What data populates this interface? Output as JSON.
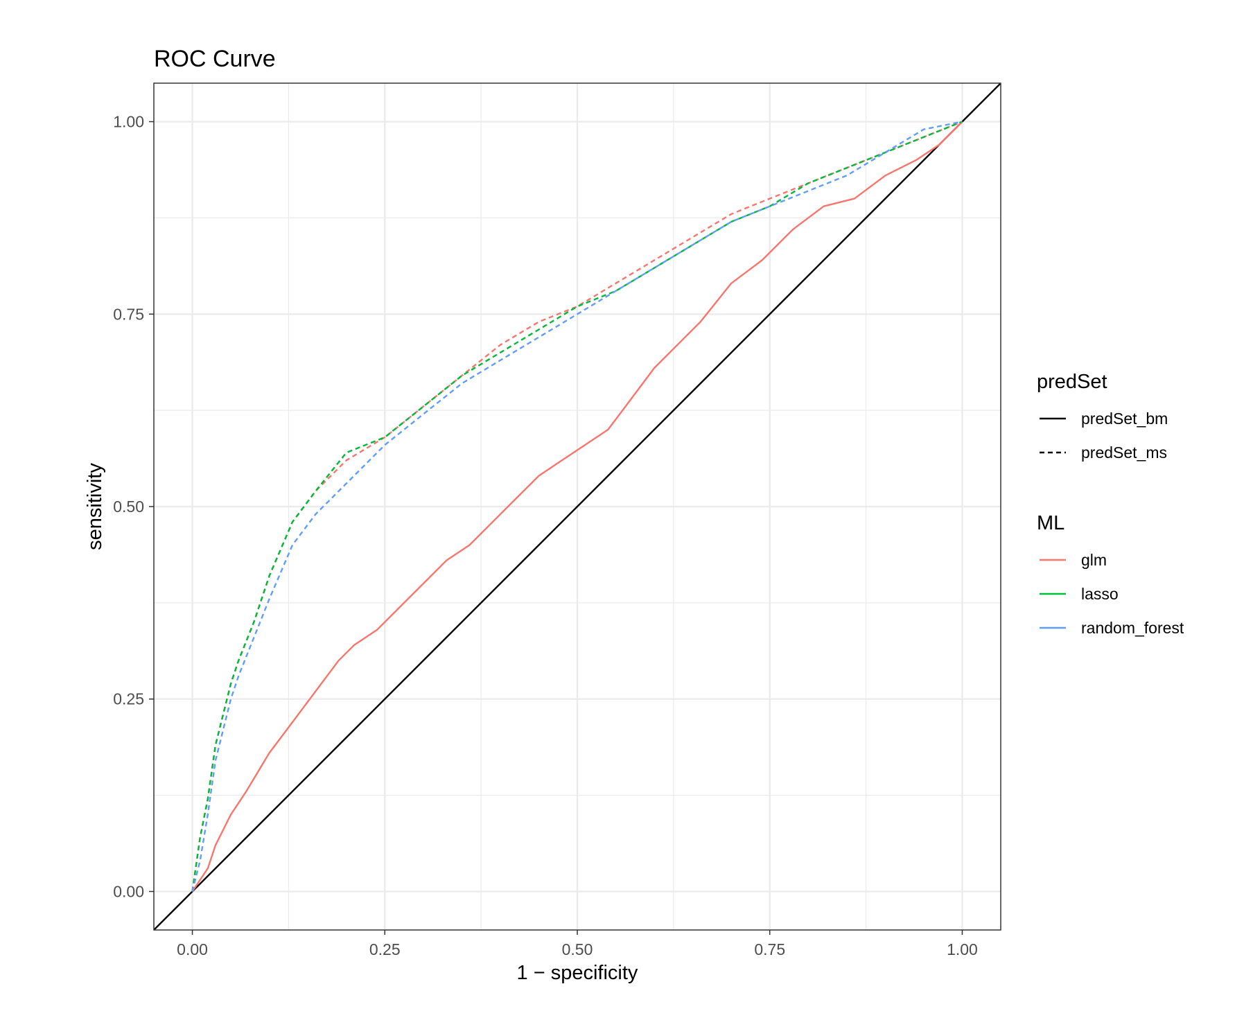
{
  "chart_data": {
    "type": "line",
    "title": "ROC Curve",
    "xlabel": "1 − specificity",
    "ylabel": "sensitivity",
    "xlim": [
      -0.05,
      1.05
    ],
    "ylim": [
      -0.05,
      1.05
    ],
    "x_ticks": [
      "0.00",
      "0.25",
      "0.50",
      "0.75",
      "1.00"
    ],
    "y_ticks": [
      "0.00",
      "0.25",
      "0.50",
      "0.75",
      "1.00"
    ],
    "grid": true,
    "legend_position": "right",
    "legends": [
      {
        "title": "predSet",
        "kind": "linetype",
        "entries": [
          {
            "label": "predSet_bm",
            "dash": "solid"
          },
          {
            "label": "predSet_ms",
            "dash": "dashed"
          }
        ]
      },
      {
        "title": "ML",
        "kind": "color",
        "entries": [
          {
            "label": "glm",
            "color": "#F8766D"
          },
          {
            "label": "lasso",
            "color": "#00BA38"
          },
          {
            "label": "random_forest",
            "color": "#619CFF"
          }
        ]
      }
    ],
    "reference_line": {
      "color": "#000000",
      "points": [
        [
          -0.05,
          -0.05
        ],
        [
          1.05,
          1.05
        ]
      ]
    },
    "series": [
      {
        "name": "glm",
        "color": "#F8766D",
        "dash": "solid",
        "x": [
          0.0,
          0.02,
          0.03,
          0.05,
          0.07,
          0.1,
          0.13,
          0.16,
          0.19,
          0.21,
          0.24,
          0.27,
          0.3,
          0.33,
          0.36,
          0.39,
          0.42,
          0.45,
          0.48,
          0.51,
          0.54,
          0.57,
          0.6,
          0.63,
          0.66,
          0.7,
          0.74,
          0.78,
          0.82,
          0.86,
          0.9,
          0.94,
          0.97,
          1.0
        ],
        "y": [
          0.0,
          0.03,
          0.06,
          0.1,
          0.13,
          0.18,
          0.22,
          0.26,
          0.3,
          0.32,
          0.34,
          0.37,
          0.4,
          0.43,
          0.45,
          0.48,
          0.51,
          0.54,
          0.56,
          0.58,
          0.6,
          0.64,
          0.68,
          0.71,
          0.74,
          0.79,
          0.82,
          0.86,
          0.89,
          0.9,
          0.93,
          0.95,
          0.97,
          1.0
        ]
      },
      {
        "name": "glm",
        "color": "#F8766D",
        "dash": "dashed",
        "x": [
          0.0,
          0.01,
          0.02,
          0.03,
          0.04,
          0.05,
          0.06,
          0.08,
          0.1,
          0.13,
          0.16,
          0.2,
          0.25,
          0.3,
          0.35,
          0.4,
          0.45,
          0.5,
          0.55,
          0.6,
          0.65,
          0.7,
          0.75,
          0.8,
          0.85,
          0.9,
          0.95,
          1.0
        ],
        "y": [
          0.0,
          0.07,
          0.12,
          0.19,
          0.23,
          0.27,
          0.3,
          0.35,
          0.41,
          0.48,
          0.52,
          0.56,
          0.59,
          0.63,
          0.67,
          0.71,
          0.74,
          0.76,
          0.79,
          0.82,
          0.85,
          0.88,
          0.9,
          0.92,
          0.94,
          0.96,
          0.98,
          1.0
        ]
      },
      {
        "name": "lasso",
        "color": "#00BA38",
        "dash": "dashed",
        "x": [
          0.0,
          0.01,
          0.02,
          0.03,
          0.04,
          0.05,
          0.06,
          0.08,
          0.1,
          0.13,
          0.16,
          0.2,
          0.25,
          0.3,
          0.35,
          0.4,
          0.45,
          0.5,
          0.55,
          0.6,
          0.65,
          0.7,
          0.75,
          0.8,
          0.85,
          0.9,
          0.95,
          1.0
        ],
        "y": [
          0.0,
          0.07,
          0.12,
          0.19,
          0.23,
          0.27,
          0.3,
          0.35,
          0.41,
          0.48,
          0.52,
          0.57,
          0.59,
          0.63,
          0.67,
          0.7,
          0.73,
          0.76,
          0.78,
          0.81,
          0.84,
          0.87,
          0.89,
          0.92,
          0.94,
          0.96,
          0.98,
          1.0
        ]
      },
      {
        "name": "random_forest",
        "color": "#619CFF",
        "dash": "dashed",
        "x": [
          0.0,
          0.01,
          0.02,
          0.03,
          0.04,
          0.05,
          0.06,
          0.08,
          0.1,
          0.13,
          0.16,
          0.2,
          0.25,
          0.3,
          0.35,
          0.4,
          0.45,
          0.5,
          0.55,
          0.6,
          0.65,
          0.7,
          0.75,
          0.8,
          0.85,
          0.9,
          0.95,
          1.0
        ],
        "y": [
          0.0,
          0.04,
          0.1,
          0.17,
          0.21,
          0.25,
          0.28,
          0.33,
          0.38,
          0.45,
          0.49,
          0.53,
          0.58,
          0.62,
          0.66,
          0.69,
          0.72,
          0.75,
          0.78,
          0.81,
          0.84,
          0.87,
          0.89,
          0.91,
          0.93,
          0.96,
          0.99,
          1.0
        ]
      }
    ]
  }
}
